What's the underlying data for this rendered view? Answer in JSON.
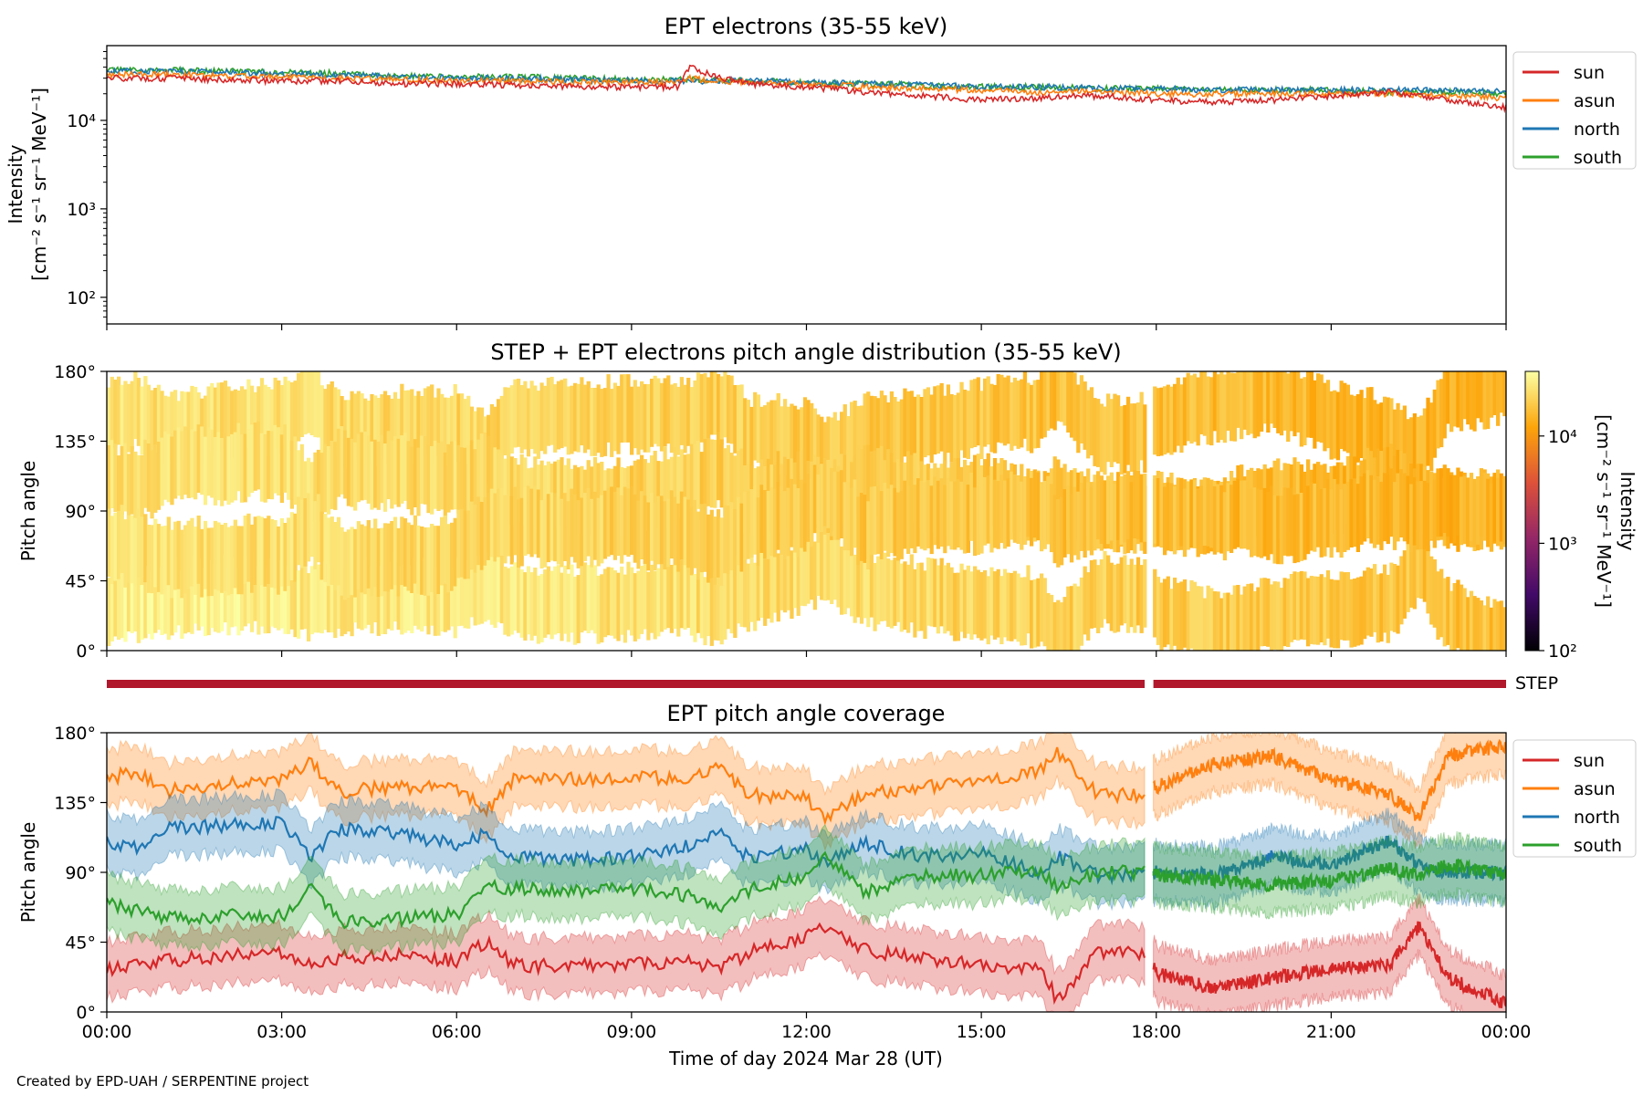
{
  "credit": "Created by EPD-UAH / SERPENTINE project",
  "x_axis": {
    "label": "Time of day 2024 Mar 28 (UT)",
    "range_hours": [
      0,
      24
    ],
    "tick_hours": [
      0,
      3,
      6,
      9,
      12,
      15,
      18,
      21,
      24
    ],
    "tick_labels": [
      "00:00",
      "03:00",
      "06:00",
      "09:00",
      "12:00",
      "15:00",
      "18:00",
      "21:00",
      "00:00"
    ]
  },
  "colors": {
    "sun": "#d62728",
    "asun": "#ff7f0e",
    "north": "#1f77b4",
    "south": "#2ca02c",
    "step_bar": "#b2182b"
  },
  "chart_data": [
    {
      "type": "line",
      "title": "EPT electrons (35-55 keV)",
      "ylabel_line1": "Intensity",
      "ylabel_line2": "[cm⁻² s⁻¹ sr⁻¹ MeV⁻¹]",
      "yscale": "log",
      "ylim": [
        50,
        70000
      ],
      "y_ticks": [
        100,
        1000,
        10000
      ],
      "y_tick_labels": [
        "10²",
        "10³",
        "10⁴"
      ],
      "legend_position": "outside-right",
      "x_hours": [
        0,
        1,
        2,
        3,
        4,
        5,
        6,
        7,
        8,
        9,
        9.8,
        10,
        10.4,
        11,
        12,
        13,
        14,
        15,
        16,
        17,
        18,
        19,
        20,
        21,
        22,
        23,
        24
      ],
      "series": [
        {
          "name": "sun",
          "values": [
            30000,
            30000,
            29000,
            28000,
            28000,
            26000,
            26000,
            25000,
            24000,
            24000,
            24000,
            40000,
            32000,
            26000,
            24000,
            21000,
            19000,
            17000,
            18000,
            19000,
            17000,
            16000,
            17000,
            19000,
            21000,
            17000,
            14000
          ]
        },
        {
          "name": "asun",
          "values": [
            33000,
            33000,
            32000,
            31000,
            30000,
            29000,
            28000,
            28000,
            27000,
            27000,
            27000,
            30000,
            28000,
            27000,
            26000,
            24000,
            23000,
            22000,
            21000,
            21000,
            20000,
            20000,
            20000,
            20000,
            20000,
            19000,
            18000
          ]
        },
        {
          "name": "north",
          "values": [
            36000,
            36000,
            35000,
            34000,
            33000,
            31000,
            30000,
            30000,
            29000,
            28000,
            28000,
            28000,
            28000,
            28000,
            27000,
            26000,
            25000,
            24000,
            24000,
            23000,
            23000,
            22000,
            22000,
            22000,
            22000,
            22000,
            21000
          ]
        },
        {
          "name": "south",
          "values": [
            37000,
            37000,
            36000,
            35000,
            34000,
            32000,
            31000,
            31000,
            30000,
            29000,
            29000,
            29000,
            29000,
            28000,
            27000,
            26000,
            25000,
            24000,
            24000,
            23000,
            23000,
            22000,
            22000,
            22000,
            21000,
            21000,
            20000
          ]
        }
      ]
    },
    {
      "type": "heatmap",
      "title": "STEP + EPT electrons pitch angle distribution (35-55 keV)",
      "ylabel": "Pitch angle",
      "ylim": [
        0,
        180
      ],
      "y_ticks": [
        0,
        45,
        90,
        135,
        180
      ],
      "y_tick_labels": [
        "0°",
        "45°",
        "90°",
        "135°",
        "180°"
      ],
      "colorbar": {
        "label_line1": "Intensity",
        "label_line2": "[cm⁻² s⁻¹ sr⁻¹ MeV⁻¹]",
        "scale": "log",
        "range": [
          100,
          40000
        ],
        "ticks": [
          100,
          1000,
          10000
        ],
        "tick_labels": [
          "10²",
          "10³",
          "10⁴"
        ],
        "colormap_stops": [
          "#000004",
          "#420a68",
          "#932667",
          "#dd513a",
          "#fca50a",
          "#fcffa4"
        ]
      },
      "data_gap_hours": [
        17.8,
        17.95
      ],
      "intensity_by_hour": [
        {
          "hour": 0,
          "level": 30000
        },
        {
          "hour": 3,
          "level": 29000
        },
        {
          "hour": 6,
          "level": 27000
        },
        {
          "hour": 9,
          "level": 25000
        },
        {
          "hour": 12,
          "level": 23000
        },
        {
          "hour": 15,
          "level": 21000
        },
        {
          "hour": 18,
          "level": 19000
        },
        {
          "hour": 21,
          "level": 18000
        },
        {
          "hour": 24,
          "level": 16000
        }
      ]
    },
    {
      "type": "bar",
      "label": "STEP",
      "segments_hours": [
        [
          0,
          17.8
        ],
        [
          17.95,
          24
        ]
      ]
    },
    {
      "type": "line",
      "title": "EPT pitch angle coverage",
      "ylabel": "Pitch angle",
      "ylim": [
        0,
        180
      ],
      "y_ticks": [
        0,
        45,
        90,
        135,
        180
      ],
      "y_tick_labels": [
        "0°",
        "45°",
        "90°",
        "135°",
        "180°"
      ],
      "legend_position": "outside-right",
      "band_halfwidth_deg": 18,
      "data_gap_hours": [
        17.8,
        17.95
      ],
      "x_hours": [
        0,
        0.5,
        1,
        2,
        3,
        3.5,
        4,
        5,
        6,
        6.5,
        7,
        8,
        9,
        10,
        10.5,
        11,
        12,
        12.3,
        13,
        14,
        15,
        16,
        16.3,
        17,
        17.8,
        18,
        19,
        20,
        21,
        22,
        22.5,
        23,
        24
      ],
      "series": [
        {
          "name": "sun",
          "values": [
            28,
            30,
            33,
            36,
            38,
            30,
            35,
            36,
            33,
            45,
            30,
            30,
            31,
            33,
            28,
            38,
            48,
            55,
            40,
            34,
            30,
            28,
            8,
            38,
            38,
            25,
            15,
            22,
            28,
            30,
            55,
            22,
            5
          ]
        },
        {
          "name": "asun",
          "values": [
            150,
            155,
            142,
            147,
            150,
            160,
            142,
            145,
            145,
            130,
            150,
            150,
            152,
            150,
            160,
            140,
            138,
            125,
            140,
            145,
            150,
            155,
            168,
            140,
            140,
            145,
            160,
            165,
            150,
            140,
            125,
            165,
            172
          ]
        },
        {
          "name": "north",
          "values": [
            110,
            105,
            118,
            120,
            122,
            100,
            118,
            115,
            108,
            115,
            100,
            98,
            100,
            108,
            115,
            100,
            105,
            95,
            108,
            100,
            102,
            90,
            100,
            88,
            88,
            90,
            88,
            100,
            95,
            110,
            95,
            90,
            90
          ]
        },
        {
          "name": "south",
          "values": [
            70,
            65,
            60,
            62,
            62,
            80,
            58,
            60,
            63,
            80,
            80,
            78,
            80,
            75,
            65,
            78,
            88,
            100,
            78,
            88,
            88,
            92,
            80,
            90,
            90,
            88,
            85,
            82,
            85,
            92,
            88,
            95,
            88
          ]
        }
      ]
    }
  ]
}
